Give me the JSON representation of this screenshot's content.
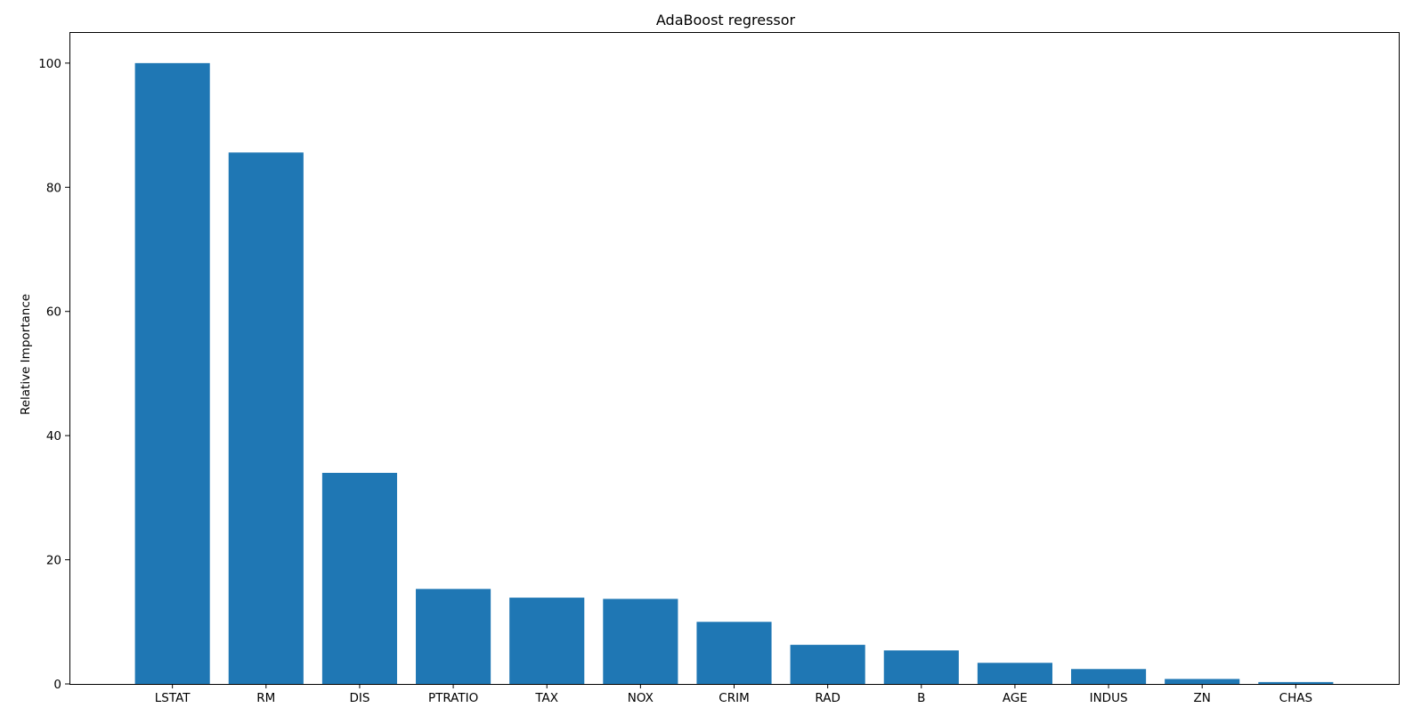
{
  "chart_data": {
    "type": "bar",
    "title": "AdaBoost regressor",
    "xlabel": "",
    "ylabel": "Relative Importance",
    "categories": [
      "LSTAT",
      "RM",
      "DIS",
      "PTRATIO",
      "TAX",
      "NOX",
      "CRIM",
      "RAD",
      "B",
      "AGE",
      "INDUS",
      "ZN",
      "CHAS"
    ],
    "values": [
      100,
      85.6,
      34.0,
      15.3,
      13.9,
      13.7,
      10.0,
      6.3,
      5.4,
      3.4,
      2.4,
      0.8,
      0.3
    ],
    "ylim": [
      0,
      105
    ],
    "yticks": [
      0,
      20,
      40,
      60,
      80,
      100
    ],
    "grid": false,
    "bar_color": "#1f77b4"
  }
}
